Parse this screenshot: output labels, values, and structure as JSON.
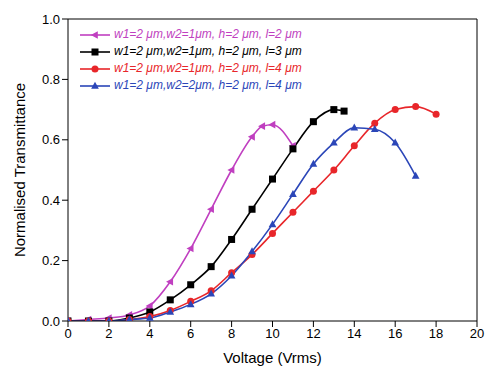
{
  "chart_data": {
    "type": "line",
    "x_label": "Voltage (Vrms)",
    "y_label": "Normalised Transmittance",
    "xlim": [
      0,
      20
    ],
    "xticks": [
      0,
      2,
      4,
      6,
      8,
      10,
      12,
      14,
      16,
      18,
      20
    ],
    "ylim": [
      0,
      1
    ],
    "yticks": [
      {
        "value": 0,
        "label": "0.0"
      },
      0.2,
      0.4,
      0.6,
      0.8,
      {
        "value": 1,
        "label": "1.0"
      }
    ],
    "grid": false,
    "legend": "upper left",
    "series": [
      {
        "name": "w1=2 μm,w2=1μm, h=2 μm, l=2 μm",
        "color": "#c03fc0",
        "marker": "triangle-left",
        "x": [
          0,
          1,
          2,
          3,
          4,
          5,
          6,
          7,
          8,
          9,
          9.5,
          10,
          11
        ],
        "values": [
          0,
          0.005,
          0.01,
          0.02,
          0.05,
          0.13,
          0.24,
          0.37,
          0.5,
          0.61,
          0.645,
          0.65,
          0.58
        ]
      },
      {
        "name": "w1=2 μm,w2=1μm, h=2 μm, l=3 μm",
        "color": "#000000",
        "marker": "square",
        "x": [
          0,
          1,
          2,
          3,
          4,
          5,
          6,
          7,
          8,
          9,
          10,
          11,
          12,
          13,
          13.5
        ],
        "values": [
          0,
          0,
          0,
          0.01,
          0.03,
          0.07,
          0.12,
          0.18,
          0.27,
          0.37,
          0.47,
          0.57,
          0.66,
          0.7,
          0.695
        ]
      },
      {
        "name": "w1=2 μm,w2=1μm, h=2 μm, l=4 μm",
        "color": "#e8262a",
        "marker": "circle",
        "x": [
          0,
          1,
          2,
          3,
          4,
          5,
          6,
          7,
          8,
          9,
          10,
          11,
          12,
          13,
          14,
          15,
          16,
          17,
          18
        ],
        "values": [
          0,
          0,
          0,
          0.005,
          0.015,
          0.035,
          0.065,
          0.1,
          0.16,
          0.22,
          0.29,
          0.36,
          0.43,
          0.5,
          0.58,
          0.655,
          0.7,
          0.71,
          0.685
        ]
      },
      {
        "name": "w1=2 μm,w2=2μm, h=2 μm, l=4 μm",
        "color": "#2b46b8",
        "marker": "triangle",
        "x": [
          0,
          1,
          2,
          3,
          4,
          5,
          6,
          7,
          8,
          9,
          10,
          11,
          12,
          13,
          14,
          15,
          16,
          17
        ],
        "values": [
          0,
          0,
          0,
          0.005,
          0.01,
          0.03,
          0.055,
          0.09,
          0.15,
          0.23,
          0.32,
          0.42,
          0.52,
          0.59,
          0.64,
          0.635,
          0.59,
          0.48
        ]
      }
    ]
  }
}
